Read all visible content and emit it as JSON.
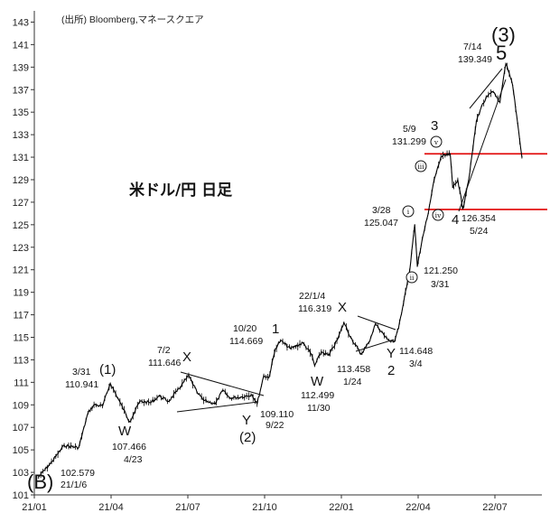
{
  "source": "(出所)  Bloomberg,マネースクエア",
  "chart_title": "米ドル/円 日足",
  "chart_data": {
    "type": "line",
    "title": "米ドル/円 日足",
    "xlabel": "",
    "ylabel": "",
    "x_ticks": [
      "21/01",
      "21/04",
      "21/07",
      "21/10",
      "22/01",
      "22/04",
      "22/07"
    ],
    "y_ticks": [
      101,
      103,
      105,
      107,
      109,
      111,
      113,
      115,
      117,
      119,
      121,
      123,
      125,
      127,
      129,
      131,
      133,
      135,
      137,
      139,
      141,
      143
    ],
    "ylim": [
      101,
      144
    ],
    "grid": false,
    "series": [
      {
        "name": "",
        "color": "#000000",
        "points": [
          [
            "21/01/06",
            102.6
          ],
          [
            "21/01/20",
            103.8
          ],
          [
            "21/02/05",
            105.4
          ],
          [
            "21/02/22",
            105.2
          ],
          [
            "21/03/05",
            108.3
          ],
          [
            "21/03/12",
            109.0
          ],
          [
            "21/03/22",
            108.9
          ],
          [
            "21/03/31",
            110.9
          ],
          [
            "21/04/09",
            109.6
          ],
          [
            "21/04/23",
            107.5
          ],
          [
            "21/05/05",
            109.3
          ],
          [
            "21/05/18",
            109.2
          ],
          [
            "21/05/28",
            109.8
          ],
          [
            "21/06/08",
            109.3
          ],
          [
            "21/06/18",
            110.2
          ],
          [
            "21/07/02",
            111.6
          ],
          [
            "21/07/12",
            110.1
          ],
          [
            "21/07/20",
            109.4
          ],
          [
            "21/08/03",
            109.1
          ],
          [
            "21/08/12",
            110.3
          ],
          [
            "21/08/20",
            109.6
          ],
          [
            "21/09/03",
            109.7
          ],
          [
            "21/09/16",
            109.9
          ],
          [
            "21/09/22",
            109.1
          ],
          [
            "21/09/30",
            111.6
          ],
          [
            "21/10/06",
            111.4
          ],
          [
            "21/10/14",
            114.0
          ],
          [
            "21/10/20",
            114.7
          ],
          [
            "21/11/01",
            114.0
          ],
          [
            "21/11/16",
            114.5
          ],
          [
            "21/11/26",
            113.5
          ],
          [
            "21/11/30",
            112.5
          ],
          [
            "21/12/08",
            113.7
          ],
          [
            "21/12/17",
            113.4
          ],
          [
            "21/12/28",
            114.9
          ],
          [
            "22/01/04",
            116.3
          ],
          [
            "22/01/12",
            115.0
          ],
          [
            "22/01/24",
            113.5
          ],
          [
            "22/02/02",
            114.5
          ],
          [
            "22/02/10",
            116.2
          ],
          [
            "22/02/24",
            114.8
          ],
          [
            "22/03/04",
            114.6
          ],
          [
            "22/03/09",
            115.8
          ],
          [
            "22/03/16",
            118.6
          ],
          [
            "22/03/22",
            120.9
          ],
          [
            "22/03/28",
            125.0
          ],
          [
            "22/03/31",
            121.3
          ],
          [
            "22/04/06",
            123.8
          ],
          [
            "22/04/13",
            126.0
          ],
          [
            "22/04/20",
            129.0
          ],
          [
            "22/04/28",
            131.0
          ],
          [
            "22/05/09",
            131.3
          ],
          [
            "22/05/12",
            128.3
          ],
          [
            "22/05/18",
            129.0
          ],
          [
            "22/05/24",
            126.4
          ],
          [
            "22/06/01",
            129.5
          ],
          [
            "22/06/09",
            134.2
          ],
          [
            "22/06/15",
            135.5
          ],
          [
            "22/06/22",
            136.4
          ],
          [
            "22/06/29",
            136.8
          ],
          [
            "22/07/07",
            135.9
          ],
          [
            "22/07/14",
            139.3
          ],
          [
            "22/07/22",
            137.4
          ],
          [
            "22/07/28",
            134.0
          ],
          [
            "22/08/02",
            131.0
          ]
        ]
      }
    ],
    "annotations": [
      {
        "id": "B",
        "date": "21/01/06",
        "price": 102.579,
        "date_label": "21/1/6",
        "price_label": "102.579",
        "wave_label": "(B)"
      },
      {
        "id": "w1",
        "date": "21/03/31",
        "price": 110.941,
        "date_label": "3/31",
        "price_label": "110.941",
        "wave_label": "(1)"
      },
      {
        "id": "W_a",
        "date": "21/04/23",
        "price": 107.466,
        "date_label": "4/23",
        "price_label": "107.466",
        "wave_label": "W"
      },
      {
        "id": "X_a",
        "date": "21/07/02",
        "price": 111.646,
        "date_label": "7/2",
        "price_label": "111.646",
        "wave_label": "X"
      },
      {
        "id": "w2",
        "date": "21/09/22",
        "price": 109.11,
        "date_label": "9/22",
        "price_label": "109.110",
        "wave_label": "Y",
        "wave_label_2": "(2)"
      },
      {
        "id": "one",
        "date": "21/10/20",
        "price": 114.669,
        "date_label": "10/20",
        "price_label": "114.669",
        "wave_label": "1"
      },
      {
        "id": "W_b",
        "date": "21/11/30",
        "price": 112.499,
        "date_label": "11/30",
        "price_label": "112.499",
        "wave_label": "W"
      },
      {
        "id": "X_b",
        "date": "22/01/04",
        "price": 116.319,
        "date_label": "22/1/4",
        "price_label": "116.319",
        "wave_label": "X"
      },
      {
        "id": "jan24",
        "date": "22/01/24",
        "price": 113.458,
        "date_label": "1/24",
        "price_label": "113.458"
      },
      {
        "id": "two",
        "date": "22/03/04",
        "price": 114.648,
        "date_label": "3/4",
        "price_label": "114.648",
        "wave_label": "Y",
        "wave_label_2": "2"
      },
      {
        "id": "mi",
        "date": "22/03/28",
        "price": 125.047,
        "date_label": "3/28",
        "price_label": "125.047",
        "wave_label": "i"
      },
      {
        "id": "mii",
        "date": "22/03/31",
        "price": 121.25,
        "date_label": "3/31",
        "price_label": "121.250",
        "wave_label": "ii"
      },
      {
        "id": "three",
        "date": "22/05/09",
        "price": 131.299,
        "date_label": "5/9",
        "price_label": "131.299",
        "wave_label": "3"
      },
      {
        "id": "four",
        "date": "22/05/24",
        "price": 126.354,
        "date_label": "5/24",
        "price_label": "126.354",
        "wave_label": "4"
      },
      {
        "id": "five",
        "date": "22/07/14",
        "price": 139.349,
        "date_label": "7/14",
        "price_label": "139.349",
        "wave_label": "5",
        "wave_label_2": "(3)"
      }
    ],
    "roman_labels": [
      "i",
      "ii",
      "iii",
      "iv",
      "v"
    ],
    "horizontal_lines": [
      {
        "price": 131.299,
        "color": "#e00000"
      },
      {
        "price": 126.354,
        "color": "#e00000"
      }
    ]
  }
}
